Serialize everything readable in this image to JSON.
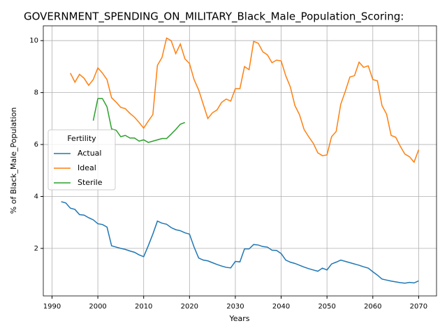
{
  "chart_data": {
    "type": "line",
    "title": "GOVERNMENT_SPENDING_ON_MILITARY_Black_Male_Population_Scoring:",
    "x_label": "Years",
    "y_label": "% of Black_Male_Population",
    "legend_title": "Fertility",
    "legend_position": "center left",
    "grid": true,
    "x": [
      1992,
      1993,
      1994,
      1995,
      1996,
      1997,
      1998,
      1999,
      2000,
      2001,
      2002,
      2003,
      2004,
      2005,
      2006,
      2007,
      2008,
      2009,
      2010,
      2011,
      2012,
      2013,
      2014,
      2015,
      2016,
      2017,
      2018,
      2019,
      2020,
      2021,
      2022,
      2023,
      2024,
      2025,
      2026,
      2027,
      2028,
      2029,
      2030,
      2031,
      2032,
      2033,
      2034,
      2035,
      2036,
      2037,
      2038,
      2039,
      2040,
      2041,
      2042,
      2043,
      2044,
      2045,
      2046,
      2047,
      2048,
      2049,
      2050,
      2051,
      2052,
      2053,
      2054,
      2055,
      2056,
      2057,
      2058,
      2059,
      2060,
      2061,
      2062,
      2063,
      2064,
      2065,
      2066,
      2067,
      2068,
      2069,
      2070
    ],
    "series": [
      {
        "name": "Actual",
        "color": "#1f77b4",
        "values": [
          3.8,
          3.75,
          3.55,
          3.5,
          3.3,
          3.28,
          3.18,
          3.1,
          2.95,
          2.92,
          2.82,
          2.1,
          2.05,
          2.0,
          1.96,
          1.9,
          1.85,
          1.75,
          1.68,
          2.1,
          2.55,
          3.05,
          2.97,
          2.93,
          2.8,
          2.72,
          2.68,
          2.6,
          2.55,
          2.05,
          1.63,
          1.55,
          1.52,
          1.45,
          1.38,
          1.32,
          1.27,
          1.25,
          1.5,
          1.48,
          1.98,
          1.98,
          2.15,
          2.13,
          2.07,
          2.05,
          1.93,
          1.92,
          1.8,
          1.55,
          1.47,
          1.42,
          1.35,
          1.28,
          1.22,
          1.17,
          1.12,
          1.24,
          1.17,
          1.4,
          1.47,
          1.55,
          1.5,
          1.45,
          1.4,
          1.35,
          1.29,
          1.24,
          1.1,
          0.97,
          0.82,
          0.78,
          0.74,
          0.71,
          0.68,
          0.66,
          0.69,
          0.67,
          0.75
        ]
      },
      {
        "name": "Ideal",
        "color": "#ff7f0e",
        "values": [
          null,
          null,
          8.75,
          8.4,
          8.7,
          8.55,
          8.28,
          8.5,
          8.95,
          8.75,
          8.5,
          7.8,
          7.63,
          7.43,
          7.38,
          7.2,
          7.05,
          6.85,
          6.63,
          6.9,
          7.15,
          9.05,
          9.35,
          10.1,
          10.0,
          9.5,
          9.87,
          9.3,
          9.12,
          8.5,
          8.1,
          7.55,
          7.0,
          7.22,
          7.33,
          7.62,
          7.75,
          7.67,
          8.15,
          8.15,
          9.0,
          8.88,
          9.97,
          9.9,
          9.57,
          9.45,
          9.15,
          9.25,
          9.22,
          8.65,
          8.22,
          7.5,
          7.15,
          6.58,
          6.3,
          6.05,
          5.68,
          5.57,
          5.6,
          6.3,
          6.5,
          7.55,
          8.05,
          8.6,
          8.65,
          9.17,
          8.97,
          9.03,
          8.5,
          8.45,
          7.5,
          7.17,
          6.35,
          6.28,
          5.93,
          5.63,
          5.53,
          5.32,
          5.8
        ]
      },
      {
        "name": "Sterile",
        "color": "#2ca02c",
        "values": [
          null,
          null,
          null,
          null,
          null,
          null,
          null,
          6.92,
          7.77,
          7.77,
          7.45,
          6.6,
          6.55,
          6.3,
          6.35,
          6.25,
          6.25,
          6.13,
          6.18,
          6.08,
          6.13,
          6.18,
          6.23,
          6.23,
          6.4,
          6.58,
          6.78,
          6.85,
          null,
          null,
          null,
          null,
          null,
          null,
          null,
          null,
          null,
          null,
          null,
          null,
          null,
          null,
          null,
          null,
          null,
          null,
          null,
          null,
          null,
          null,
          null,
          null,
          null,
          null,
          null,
          null,
          null,
          null,
          null,
          null,
          null,
          null,
          null,
          null,
          null,
          null,
          null,
          null,
          null,
          null,
          null,
          null,
          null,
          null,
          null,
          null,
          null,
          null,
          null
        ]
      }
    ],
    "xlim": [
      1988.1,
      2073.9
    ],
    "xticks": [
      1990,
      2000,
      2010,
      2020,
      2030,
      2040,
      2050,
      2060,
      2070
    ],
    "ylim": [
      0.17,
      10.57
    ],
    "yticks": [
      2,
      4,
      6,
      8,
      10
    ]
  }
}
